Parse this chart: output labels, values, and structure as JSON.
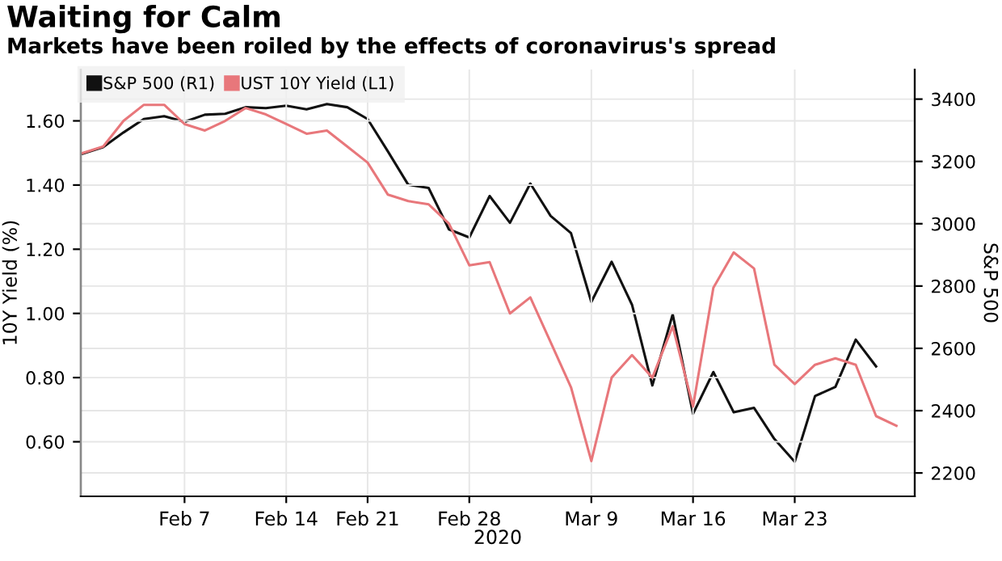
{
  "chart_data": {
    "type": "line",
    "title": "Waiting for Calm",
    "subtitle": "Markets have been roiled by the effects of coronavirus's spread",
    "categories": [
      null,
      null,
      null,
      null,
      null,
      "Feb 7",
      null,
      null,
      null,
      null,
      "Feb 14",
      null,
      null,
      null,
      "Feb 21",
      null,
      null,
      null,
      null,
      "Feb 28",
      null,
      null,
      null,
      null,
      null,
      "Mar 9",
      null,
      null,
      null,
      null,
      "Mar 16",
      null,
      null,
      null,
      null,
      "Mar 23",
      null,
      null,
      null,
      null,
      null
    ],
    "xlabel": "2020",
    "ylabel": "10Y Yield (%)",
    "y2label": "S&P 500",
    "series": [
      {
        "name": "S&P 500 (R1)",
        "color": "#111111",
        "axis": "y2",
        "values": [
          3225,
          3246,
          3293,
          3336,
          3345,
          3327,
          3350,
          3353,
          3374,
          3371,
          3379,
          3367,
          3384,
          3374,
          3336,
          3232,
          3125,
          3115,
          2982,
          2956,
          3089,
          3003,
          3129,
          3025,
          2970,
          2749,
          2878,
          2740,
          2481,
          2709,
          2390,
          2524,
          2395,
          2409,
          2309,
          2236,
          2447,
          2476,
          2628,
          2542,
          null
        ]
      },
      {
        "name": "UST 10Y Yield (L1)",
        "color": "#e8777b",
        "values": [
          1.5,
          1.52,
          1.6,
          1.65,
          1.65,
          1.59,
          1.57,
          1.6,
          1.64,
          1.62,
          1.59,
          1.56,
          1.57,
          1.52,
          1.47,
          1.37,
          1.35,
          1.34,
          1.28,
          1.15,
          1.16,
          1.0,
          1.05,
          0.91,
          0.77,
          0.54,
          0.8,
          0.87,
          0.8,
          0.96,
          0.71,
          1.08,
          1.19,
          1.14,
          0.84,
          0.78,
          0.84,
          0.86,
          0.84,
          0.68,
          0.65
        ]
      }
    ],
    "ylim": [
      0.43,
      1.76
    ],
    "yticks": [
      {
        "value": 0.6,
        "label": "0.60"
      },
      {
        "value": 0.8,
        "label": "0.80"
      },
      {
        "value": 1.0,
        "label": "1.00"
      },
      {
        "value": 1.2,
        "label": "1.20"
      },
      {
        "value": 1.4,
        "label": "1.40"
      },
      {
        "value": 1.6,
        "label": "1.60"
      }
    ],
    "y2lim": [
      2125,
      3495
    ],
    "y2ticks": [
      2200,
      2400,
      2600,
      2800,
      3000,
      3200,
      3400
    ],
    "grid": true,
    "legend": "top left",
    "marker": "none",
    "line_style": "solid"
  }
}
